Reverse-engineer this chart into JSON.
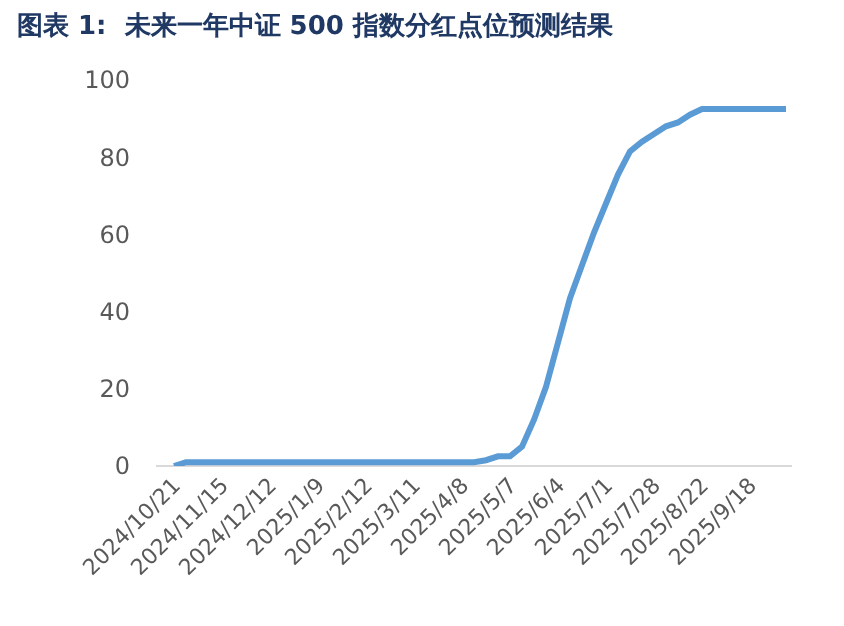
{
  "chart_data": {
    "type": "line",
    "title": "图表 1:  未来一年中证 500 指数分红点位预测结果",
    "categories": [
      "2024/10/21",
      null,
      null,
      null,
      "2024/11/15",
      null,
      null,
      null,
      "2024/12/12",
      null,
      null,
      null,
      "2025/1/9",
      null,
      null,
      null,
      "2025/2/12",
      null,
      null,
      null,
      "2025/3/11",
      null,
      null,
      null,
      "2025/4/8",
      null,
      null,
      null,
      "2025/5/7",
      null,
      null,
      null,
      "2025/6/4",
      null,
      null,
      null,
      "2025/7/1",
      null,
      null,
      null,
      "2025/7/28",
      null,
      null,
      null,
      "2025/8/22",
      null,
      null,
      null,
      "2025/9/18",
      null,
      null,
      null
    ],
    "series": [
      {
        "color": "#5b9bd5",
        "values": [
          0,
          1,
          1,
          1,
          1,
          1,
          1,
          1,
          1,
          1,
          1,
          1,
          1,
          1,
          1,
          1,
          1,
          1,
          1,
          1,
          1,
          1,
          1,
          1,
          1,
          1,
          1.5,
          2.5,
          2.5,
          5,
          12,
          20.5,
          32,
          43.5,
          52,
          60.5,
          68,
          75.5,
          81.5,
          84,
          86,
          88,
          89,
          91,
          92.5,
          92.5,
          92.5,
          92.5,
          92.5,
          92.5,
          92.5,
          92.5
        ]
      }
    ],
    "ylim": [
      0,
      100
    ],
    "yticks": [
      0,
      20,
      40,
      60,
      80,
      100
    ],
    "grid": false,
    "legend": false,
    "marker": "none",
    "line_style": "solid"
  }
}
